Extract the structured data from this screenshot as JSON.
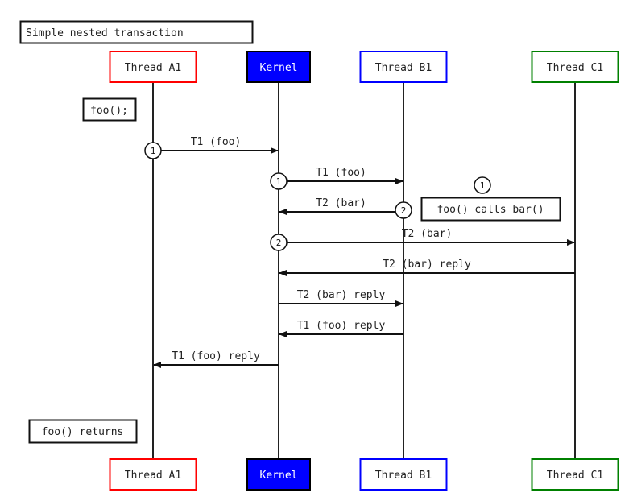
{
  "title": "Simple nested transaction",
  "participants": [
    {
      "id": "a1",
      "label": "Thread A1",
      "border": "#ff0000",
      "fill": "#ffffff",
      "text": "#222222"
    },
    {
      "id": "k",
      "label": "Kernel",
      "border": "#000000",
      "fill": "#0000ff",
      "text": "#ffffff"
    },
    {
      "id": "b1",
      "label": "Thread B1",
      "border": "#0000ff",
      "fill": "#ffffff",
      "text": "#222222"
    },
    {
      "id": "c1",
      "label": "Thread C1",
      "border": "#008000",
      "fill": "#ffffff",
      "text": "#222222"
    }
  ],
  "notes": [
    {
      "text": "foo();",
      "near": "a1"
    },
    {
      "text": "foo() calls bar()",
      "near": "b1-c1",
      "marker": "1"
    },
    {
      "text": "foo() returns",
      "near": "a1"
    }
  ],
  "messages": [
    {
      "from": "a1",
      "to": "k",
      "label": "T1 (foo)",
      "marker": "1"
    },
    {
      "from": "k",
      "to": "b1",
      "label": "T1 (foo)",
      "marker": "1"
    },
    {
      "from": "b1",
      "to": "k",
      "label": "T2 (bar)",
      "marker": "2"
    },
    {
      "from": "k",
      "to": "c1",
      "label": "T2 (bar)",
      "marker": "2"
    },
    {
      "from": "c1",
      "to": "k",
      "label": "T2 (bar) reply"
    },
    {
      "from": "k",
      "to": "b1",
      "label": "T2 (bar) reply"
    },
    {
      "from": "b1",
      "to": "k",
      "label": "T1 (foo) reply"
    },
    {
      "from": "k",
      "to": "a1",
      "label": "T1 (foo) reply"
    }
  ]
}
